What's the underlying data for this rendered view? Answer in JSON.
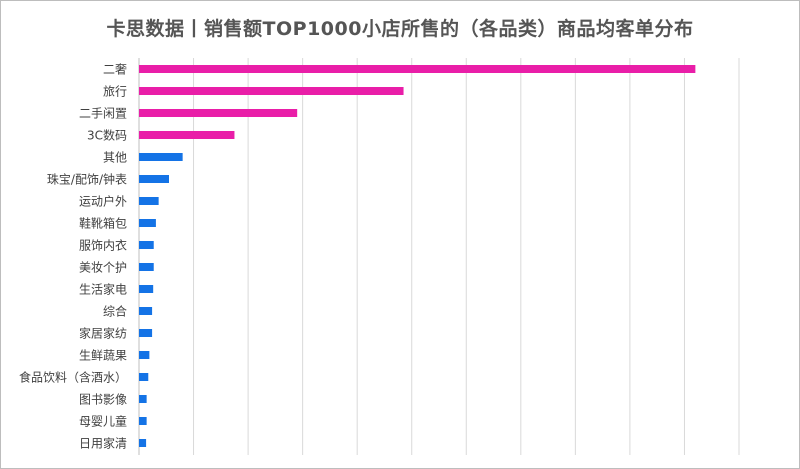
{
  "chart_data": {
    "type": "bar",
    "orientation": "horizontal",
    "title": "卡思数据丨销售额TOP1000小店所售的（各品类）商品均客单分布",
    "xlabel": "",
    "ylabel": "",
    "grid": true,
    "legend": "none",
    "xlim": [
      0,
      11
    ],
    "categories": [
      "二奢",
      "旅行",
      "二手闲置",
      "3C数码",
      "其他",
      "珠宝/配饰/钟表",
      "运动户外",
      "鞋靴箱包",
      "服饰内衣",
      "美妆个护",
      "生活家电",
      "综合",
      "家居家纺",
      "生鲜蔬果",
      "食品饮料（含酒水）",
      "图书影像",
      "母婴儿童",
      "日用家清"
    ],
    "values": [
      10.2,
      4.85,
      2.9,
      1.75,
      0.8,
      0.55,
      0.36,
      0.31,
      0.27,
      0.27,
      0.26,
      0.24,
      0.24,
      0.19,
      0.17,
      0.14,
      0.14,
      0.13
    ],
    "colors": [
      "#e91ea8",
      "#e91ea8",
      "#e91ea8",
      "#e91ea8",
      "#1473e6",
      "#1473e6",
      "#1473e6",
      "#1473e6",
      "#1473e6",
      "#1473e6",
      "#1473e6",
      "#1473e6",
      "#1473e6",
      "#1473e6",
      "#1473e6",
      "#1473e6",
      "#1473e6",
      "#1473e6"
    ]
  }
}
